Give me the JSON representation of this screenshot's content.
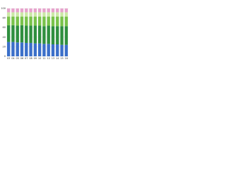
{
  "chart_data": {
    "type": "stacked_bar",
    "categories": [
      "03",
      "04",
      "05",
      "06",
      "07",
      "08",
      "09",
      "10",
      "11",
      "12",
      "13",
      "14",
      "15",
      "16"
    ],
    "series": [
      {
        "color": "#3b6fc9",
        "values": [
          30,
          30,
          29,
          29,
          28,
          28,
          27,
          27,
          26,
          26,
          25,
          25,
          24,
          24
        ]
      },
      {
        "color": "#2f8f3f",
        "values": [
          35,
          35,
          35,
          36,
          36,
          36,
          37,
          37,
          37,
          38,
          38,
          38,
          39,
          39
        ]
      },
      {
        "color": "#79c24b",
        "values": [
          18,
          18,
          19,
          18,
          19,
          19,
          19,
          19,
          20,
          19,
          20,
          20,
          20,
          20
        ]
      },
      {
        "color": "#cbe8a6",
        "values": [
          9,
          9,
          9,
          9,
          9,
          9,
          9,
          9,
          9,
          9,
          9,
          9,
          9,
          9
        ]
      },
      {
        "color": "#e6a3cc",
        "values": [
          8,
          8,
          8,
          8,
          8,
          8,
          8,
          8,
          8,
          8,
          8,
          8,
          8,
          8
        ]
      }
    ],
    "ylim": [
      0,
      100
    ],
    "yticks": [
      0,
      20,
      40,
      60,
      80,
      100
    ],
    "grid": true
  }
}
